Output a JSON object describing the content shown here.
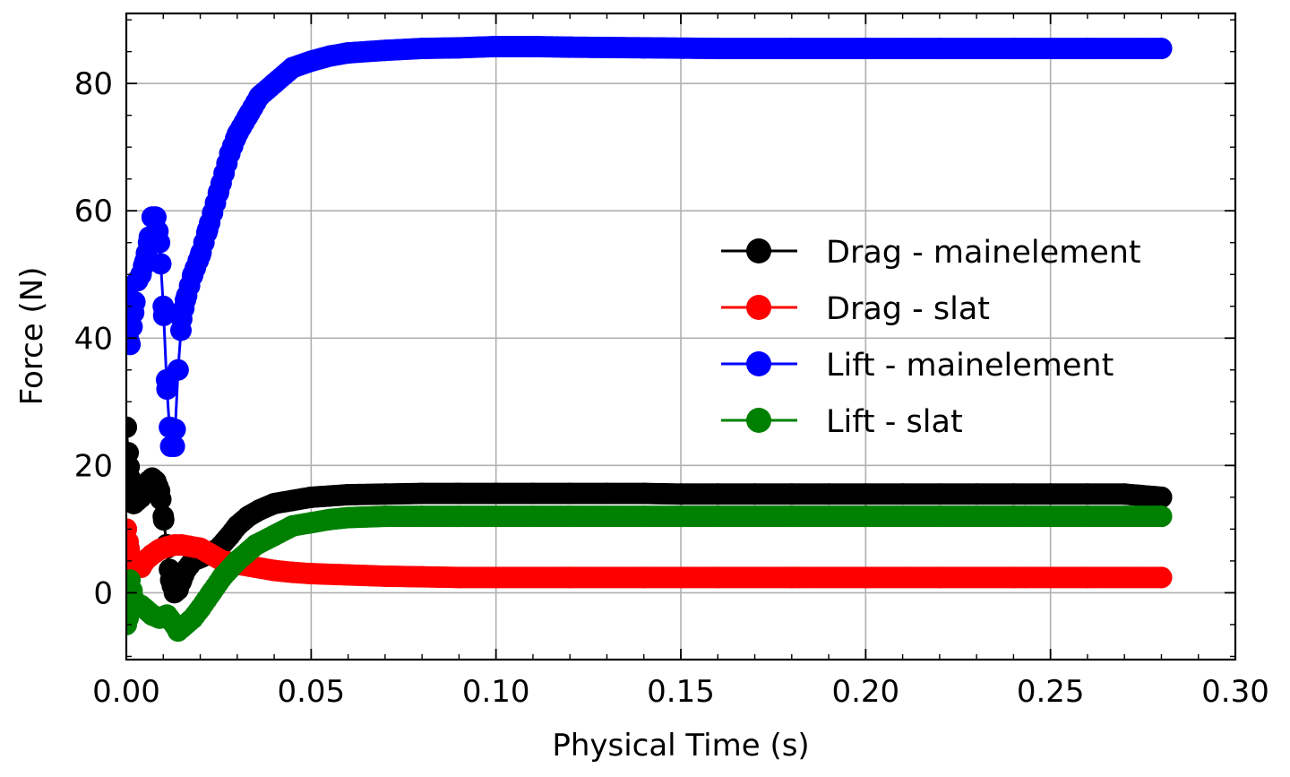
{
  "chart_data": {
    "type": "line",
    "title": "",
    "xlabel": "Physical Time (s)",
    "ylabel": "Force (N)",
    "xlim": [
      0,
      0.3
    ],
    "ylim": [
      -10.5,
      91
    ],
    "xticks": [
      0.0,
      0.05,
      0.1,
      0.15,
      0.2,
      0.25,
      0.3
    ],
    "xtick_labels": [
      "0.00",
      "0.05",
      "0.10",
      "0.15",
      "0.20",
      "0.25",
      "0.30"
    ],
    "yticks": [
      0,
      20,
      40,
      60,
      80
    ],
    "ytick_labels": [
      "0",
      "20",
      "40",
      "60",
      "80"
    ],
    "grid": true,
    "legend_position": "center-right",
    "series": [
      {
        "name": "Drag - mainelement",
        "color": "#000000",
        "x": [
          0.0,
          0.0005,
          0.001,
          0.0015,
          0.002,
          0.003,
          0.004,
          0.005,
          0.006,
          0.007,
          0.008,
          0.009,
          0.01,
          0.011,
          0.012,
          0.013,
          0.014,
          0.015,
          0.016,
          0.018,
          0.02,
          0.022,
          0.025,
          0.028,
          0.03,
          0.033,
          0.036,
          0.04,
          0.045,
          0.05,
          0.055,
          0.06,
          0.07,
          0.08,
          0.09,
          0.1,
          0.11,
          0.12,
          0.13,
          0.14,
          0.15,
          0.16,
          0.17,
          0.18,
          0.19,
          0.2,
          0.21,
          0.22,
          0.23,
          0.24,
          0.25,
          0.26,
          0.27,
          0.28
        ],
        "y": [
          26,
          22,
          18,
          15,
          14,
          14.5,
          15,
          16,
          17.5,
          18,
          17.5,
          16,
          12,
          7,
          2,
          0,
          0.5,
          2,
          3.5,
          5,
          5.5,
          6,
          7,
          9,
          10.5,
          12,
          13,
          14,
          14.5,
          15,
          15.2,
          15.4,
          15.5,
          15.6,
          15.6,
          15.6,
          15.6,
          15.6,
          15.6,
          15.6,
          15.5,
          15.5,
          15.5,
          15.5,
          15.5,
          15.5,
          15.5,
          15.5,
          15.5,
          15.5,
          15.5,
          15.5,
          15.5,
          15.0
        ]
      },
      {
        "name": "Drag - slat",
        "color": "#ff0000",
        "x": [
          0.0,
          0.0005,
          0.001,
          0.002,
          0.003,
          0.004,
          0.005,
          0.007,
          0.009,
          0.011,
          0.013,
          0.015,
          0.017,
          0.02,
          0.023,
          0.026,
          0.03,
          0.035,
          0.04,
          0.045,
          0.05,
          0.06,
          0.07,
          0.08,
          0.09,
          0.1,
          0.12,
          0.14,
          0.16,
          0.18,
          0.2,
          0.22,
          0.24,
          0.26,
          0.28
        ],
        "y": [
          10,
          8,
          6,
          4.5,
          4,
          4,
          5,
          6,
          6.8,
          7.2,
          7.5,
          7.5,
          7.3,
          7,
          6,
          5,
          4.5,
          4,
          3.5,
          3.2,
          3,
          2.8,
          2.6,
          2.5,
          2.4,
          2.4,
          2.4,
          2.4,
          2.4,
          2.4,
          2.4,
          2.4,
          2.4,
          2.4,
          2.4
        ]
      },
      {
        "name": "Lift - mainelement",
        "color": "#0000ff",
        "x": [
          0.0,
          0.0005,
          0.001,
          0.002,
          0.003,
          0.004,
          0.005,
          0.006,
          0.007,
          0.008,
          0.009,
          0.01,
          0.011,
          0.012,
          0.013,
          0.014,
          0.015,
          0.016,
          0.018,
          0.02,
          0.022,
          0.025,
          0.028,
          0.03,
          0.033,
          0.036,
          0.04,
          0.045,
          0.05,
          0.055,
          0.06,
          0.07,
          0.08,
          0.09,
          0.1,
          0.11,
          0.12,
          0.14,
          0.16,
          0.18,
          0.2,
          0.22,
          0.24,
          0.26,
          0.28
        ],
        "y": [
          48,
          40,
          39,
          44,
          49,
          50,
          52,
          55,
          59,
          59,
          55,
          45,
          32,
          23,
          23,
          35,
          43,
          46,
          50,
          53,
          57,
          63,
          69,
          72,
          75,
          78,
          80,
          82.5,
          83.5,
          84.3,
          84.8,
          85.2,
          85.5,
          85.6,
          85.8,
          85.8,
          85.7,
          85.6,
          85.5,
          85.5,
          85.5,
          85.5,
          85.5,
          85.5,
          85.5
        ]
      },
      {
        "name": "Lift - slat",
        "color": "#008000",
        "x": [
          0.0,
          0.0005,
          0.001,
          0.002,
          0.003,
          0.004,
          0.005,
          0.007,
          0.009,
          0.011,
          0.013,
          0.014,
          0.015,
          0.016,
          0.018,
          0.02,
          0.023,
          0.026,
          0.03,
          0.035,
          0.04,
          0.045,
          0.05,
          0.055,
          0.06,
          0.07,
          0.08,
          0.09,
          0.1,
          0.11,
          0.12,
          0.14,
          0.16,
          0.18,
          0.2,
          0.22,
          0.24,
          0.26,
          0.28
        ],
        "y": [
          -5,
          -4,
          2,
          -1,
          -2,
          -2,
          -2.5,
          -3.5,
          -4,
          -3.5,
          -5,
          -6,
          -5.5,
          -5,
          -4,
          -2.5,
          0,
          2.5,
          5,
          7.5,
          9,
          10.5,
          11,
          11.5,
          11.8,
          12,
          12,
          12,
          12,
          12,
          12,
          12,
          12,
          12,
          12,
          12,
          12,
          12,
          12
        ]
      }
    ]
  }
}
